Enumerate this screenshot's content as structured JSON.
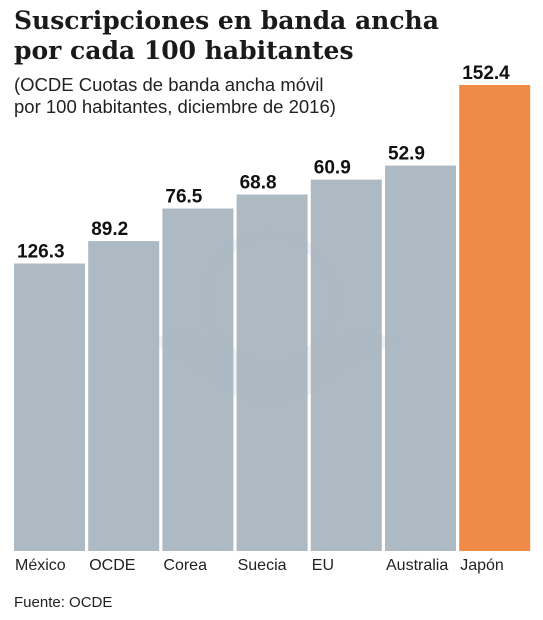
{
  "header": {
    "title_line1": "Suscripciones en banda ancha",
    "title_line2": "por cada 100 habitantes",
    "subtitle_line1": "(OCDE Cuotas de banda ancha móvil",
    "subtitle_line2": "por 100 habitantes, diciembre de 2016)"
  },
  "footer": {
    "source": "Fuente: OCDE"
  },
  "colors": {
    "bar": "#a5b3bd",
    "highlight": "#f08a47",
    "watermark": "#e4e8eb"
  },
  "chart_data": {
    "type": "bar",
    "categories": [
      "México",
      "OCDE",
      "Corea",
      "Suecia",
      "EU",
      "Australia",
      "Japón"
    ],
    "values": [
      126.3,
      89.2,
      76.5,
      68.8,
      60.9,
      52.9,
      152.4
    ],
    "value_labels": [
      "126.3",
      "89.2",
      "76.5",
      "68.8",
      "60.9",
      "52.9",
      "152.4"
    ],
    "highlight_category": "Japón",
    "grid": false,
    "legend": "none"
  }
}
